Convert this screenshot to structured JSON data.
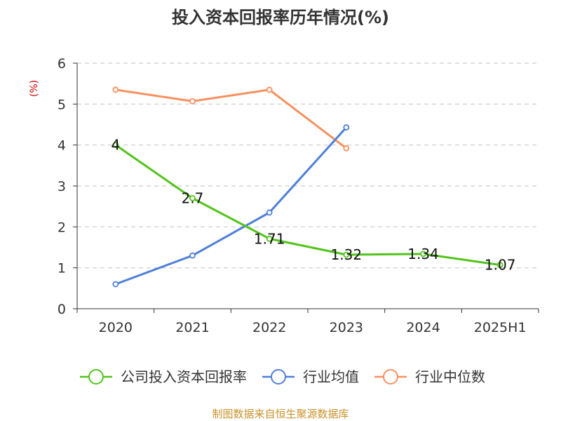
{
  "chart_data": {
    "type": "line",
    "title": "投入资本回报率历年情况(%)",
    "ylabel": "(%)",
    "ylim": [
      0,
      6
    ],
    "yticks": [
      0,
      1,
      2,
      3,
      4,
      5,
      6
    ],
    "categories": [
      "2020",
      "2021",
      "2022",
      "2023",
      "2024",
      "2025H1"
    ],
    "grid": true,
    "legend_position": "bottom",
    "series": [
      {
        "name": "公司投入资本回报率",
        "color": "#52c41a",
        "values": [
          4,
          2.7,
          1.71,
          1.32,
          1.34,
          1.07
        ],
        "show_labels": true
      },
      {
        "name": "行业均值",
        "color": "#4f7fd8",
        "values": [
          0.6,
          1.3,
          2.35,
          4.43,
          null,
          null
        ],
        "show_labels": false
      },
      {
        "name": "行业中位数",
        "color": "#f89060",
        "values": [
          5.35,
          5.07,
          5.35,
          3.92,
          null,
          null
        ],
        "show_labels": false
      }
    ]
  },
  "source": "制图数据来自恒生聚源数据库",
  "colors": {
    "ylabel": "#cc0000",
    "source": "#c8922a",
    "axis": "#333333",
    "grid": "#cccccc"
  }
}
